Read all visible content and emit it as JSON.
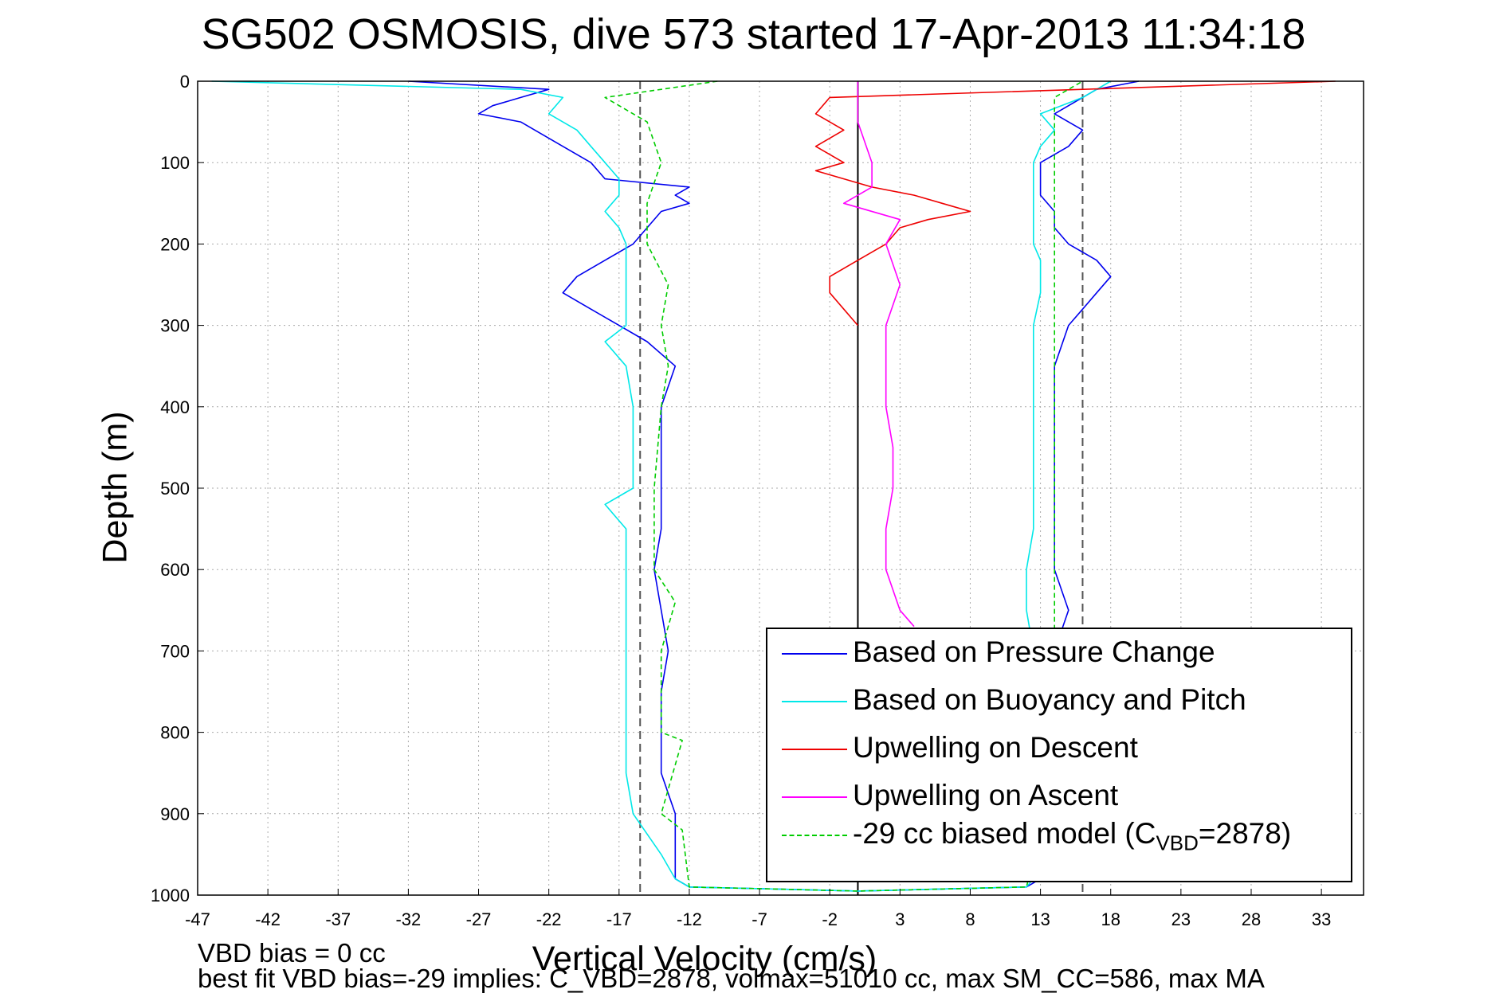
{
  "chart_data": {
    "type": "line",
    "title": "SG502 OSMOSIS, dive 573 started 17-Apr-2013 11:34:18",
    "xlabel": "Vertical Velocity (cm/s)",
    "ylabel": "Depth (m)",
    "xlim": [
      -47,
      36
    ],
    "ylim": [
      0,
      1000
    ],
    "y_reversed": true,
    "grid": true,
    "x_ticks": [
      -47,
      -42,
      -37,
      -32,
      -27,
      -22,
      -17,
      -12,
      -7,
      -2,
      3,
      8,
      13,
      18,
      23,
      28,
      33
    ],
    "y_ticks": [
      0,
      100,
      200,
      300,
      400,
      500,
      600,
      700,
      800,
      900,
      1000
    ],
    "legend_position": "bottom-right",
    "notes": [
      "VBD bias = 0 cc",
      "best fit VBD bias=-29 implies: C_VBD=2878, volmax=51010 cc, max SM_CC=586, max MA"
    ],
    "reference_lines": [
      {
        "x": 0,
        "style": "solid",
        "color": "#000000"
      },
      {
        "x": -15.5,
        "style": "dashed",
        "color": "#555555"
      },
      {
        "x": 16,
        "style": "dashed",
        "color": "#555555"
      }
    ],
    "series": [
      {
        "name": "Based on Pressure Change",
        "legend_label": "Based on Pressure Change",
        "color": "#0000ee",
        "style": "solid",
        "depth": [
          0,
          10,
          20,
          30,
          40,
          50,
          60,
          80,
          100,
          120,
          130,
          140,
          150,
          160,
          180,
          200,
          220,
          240,
          260,
          280,
          300,
          320,
          350,
          400,
          450,
          500,
          550,
          600,
          650,
          700,
          750,
          800,
          850,
          900,
          950,
          980,
          990,
          995,
          990,
          980,
          960,
          940,
          900,
          850,
          800,
          750,
          700,
          650,
          600,
          550,
          500,
          450,
          400,
          350,
          300,
          280,
          260,
          240,
          220,
          200,
          180,
          160,
          140,
          120,
          100,
          80,
          60,
          40,
          20,
          10,
          0
        ],
        "velocity": [
          -32,
          -22,
          -24,
          -26,
          -27,
          -24,
          -23,
          -21,
          -19,
          -18,
          -12,
          -13,
          -12,
          -14,
          -15,
          -16,
          -18,
          -20,
          -21,
          -19,
          -17,
          -15,
          -13,
          -14,
          -14,
          -14,
          -14,
          -14.5,
          -14,
          -13.5,
          -14,
          -14,
          -14,
          -13,
          -13,
          -13,
          -12,
          0,
          12,
          13,
          14,
          14,
          14,
          14,
          14,
          14,
          14,
          15,
          14,
          14,
          14,
          14,
          14,
          14,
          15,
          16,
          17,
          18,
          17,
          15,
          14,
          14,
          13,
          13,
          13,
          15,
          16,
          14,
          16,
          17,
          20
        ]
      },
      {
        "name": "Based on Buoyancy and Pitch",
        "legend_label": "Based on Buoyancy and Pitch",
        "color": "#00e8e8",
        "style": "solid",
        "depth": [
          0,
          10,
          20,
          40,
          60,
          80,
          100,
          120,
          140,
          160,
          180,
          200,
          220,
          260,
          300,
          320,
          350,
          400,
          450,
          500,
          520,
          550,
          600,
          650,
          700,
          750,
          800,
          850,
          900,
          950,
          980,
          990,
          995,
          990,
          980,
          950,
          900,
          850,
          800,
          750,
          700,
          650,
          600,
          550,
          500,
          450,
          400,
          350,
          300,
          260,
          220,
          200,
          160,
          120,
          100,
          80,
          60,
          40,
          20,
          0
        ],
        "velocity": [
          -46,
          -24,
          -21,
          -22,
          -20,
          -19,
          -18,
          -17,
          -17,
          -18,
          -17,
          -16.5,
          -16.5,
          -16.5,
          -16.5,
          -18,
          -16.5,
          -16,
          -16,
          -16,
          -18,
          -16.5,
          -16.5,
          -16.5,
          -16.5,
          -16.5,
          -16.5,
          -16.5,
          -16,
          -14,
          -13,
          -12,
          0,
          12,
          12.5,
          12.5,
          12.5,
          12.5,
          12.5,
          12.5,
          12.5,
          12,
          12,
          12.5,
          12.5,
          12.5,
          12.5,
          12.5,
          12.5,
          13,
          13,
          12.5,
          12.5,
          12.5,
          12.5,
          13,
          14,
          13,
          16,
          18
        ]
      },
      {
        "name": "Upwelling on Descent",
        "legend_label": "Upwelling on Descent",
        "color": "#ee0000",
        "style": "solid",
        "depth": [
          0,
          20,
          40,
          60,
          80,
          100,
          110,
          130,
          140,
          150,
          160,
          170,
          180,
          200,
          220,
          240,
          260,
          280,
          300
        ],
        "velocity": [
          34,
          -2,
          -3,
          -1,
          -3,
          -1,
          -3,
          1,
          4,
          6,
          8,
          5,
          3,
          2,
          0,
          -2,
          -2,
          -1,
          0
        ]
      },
      {
        "name": "Upwelling on Ascent",
        "legend_label": "Upwelling on Ascent",
        "color": "#ff00ff",
        "style": "solid",
        "depth": [
          0,
          50,
          100,
          130,
          150,
          170,
          200,
          250,
          300,
          350,
          400,
          450,
          500,
          550,
          600,
          650,
          670
        ],
        "velocity": [
          0,
          0,
          1,
          1,
          -1,
          3,
          2,
          3,
          2,
          2,
          2,
          2.5,
          2.5,
          2,
          2,
          3,
          4
        ]
      },
      {
        "name": "-29 cc biased model (C_VBD=2878)",
        "legend_label": "-29 cc biased model (C",
        "legend_sub": "VBD",
        "legend_tail": "=2878)",
        "color": "#00cc00",
        "style": "dashed",
        "depth": [
          0,
          20,
          50,
          100,
          150,
          200,
          250,
          300,
          350,
          400,
          500,
          600,
          640,
          700,
          800,
          810,
          900,
          920,
          990,
          995,
          990,
          920,
          900,
          800,
          700,
          600,
          500,
          400,
          300,
          250,
          200,
          150,
          100,
          50,
          20,
          0
        ],
        "velocity": [
          -10,
          -18,
          -15,
          -14,
          -15,
          -15,
          -13.5,
          -14,
          -13.5,
          -14,
          -14.5,
          -14.5,
          -13,
          -14,
          -14,
          -12.5,
          -14,
          -12.5,
          -12,
          0,
          12,
          13,
          14,
          14,
          14,
          14,
          14,
          14,
          14,
          14,
          14,
          14,
          14,
          14,
          14,
          16
        ]
      }
    ]
  }
}
